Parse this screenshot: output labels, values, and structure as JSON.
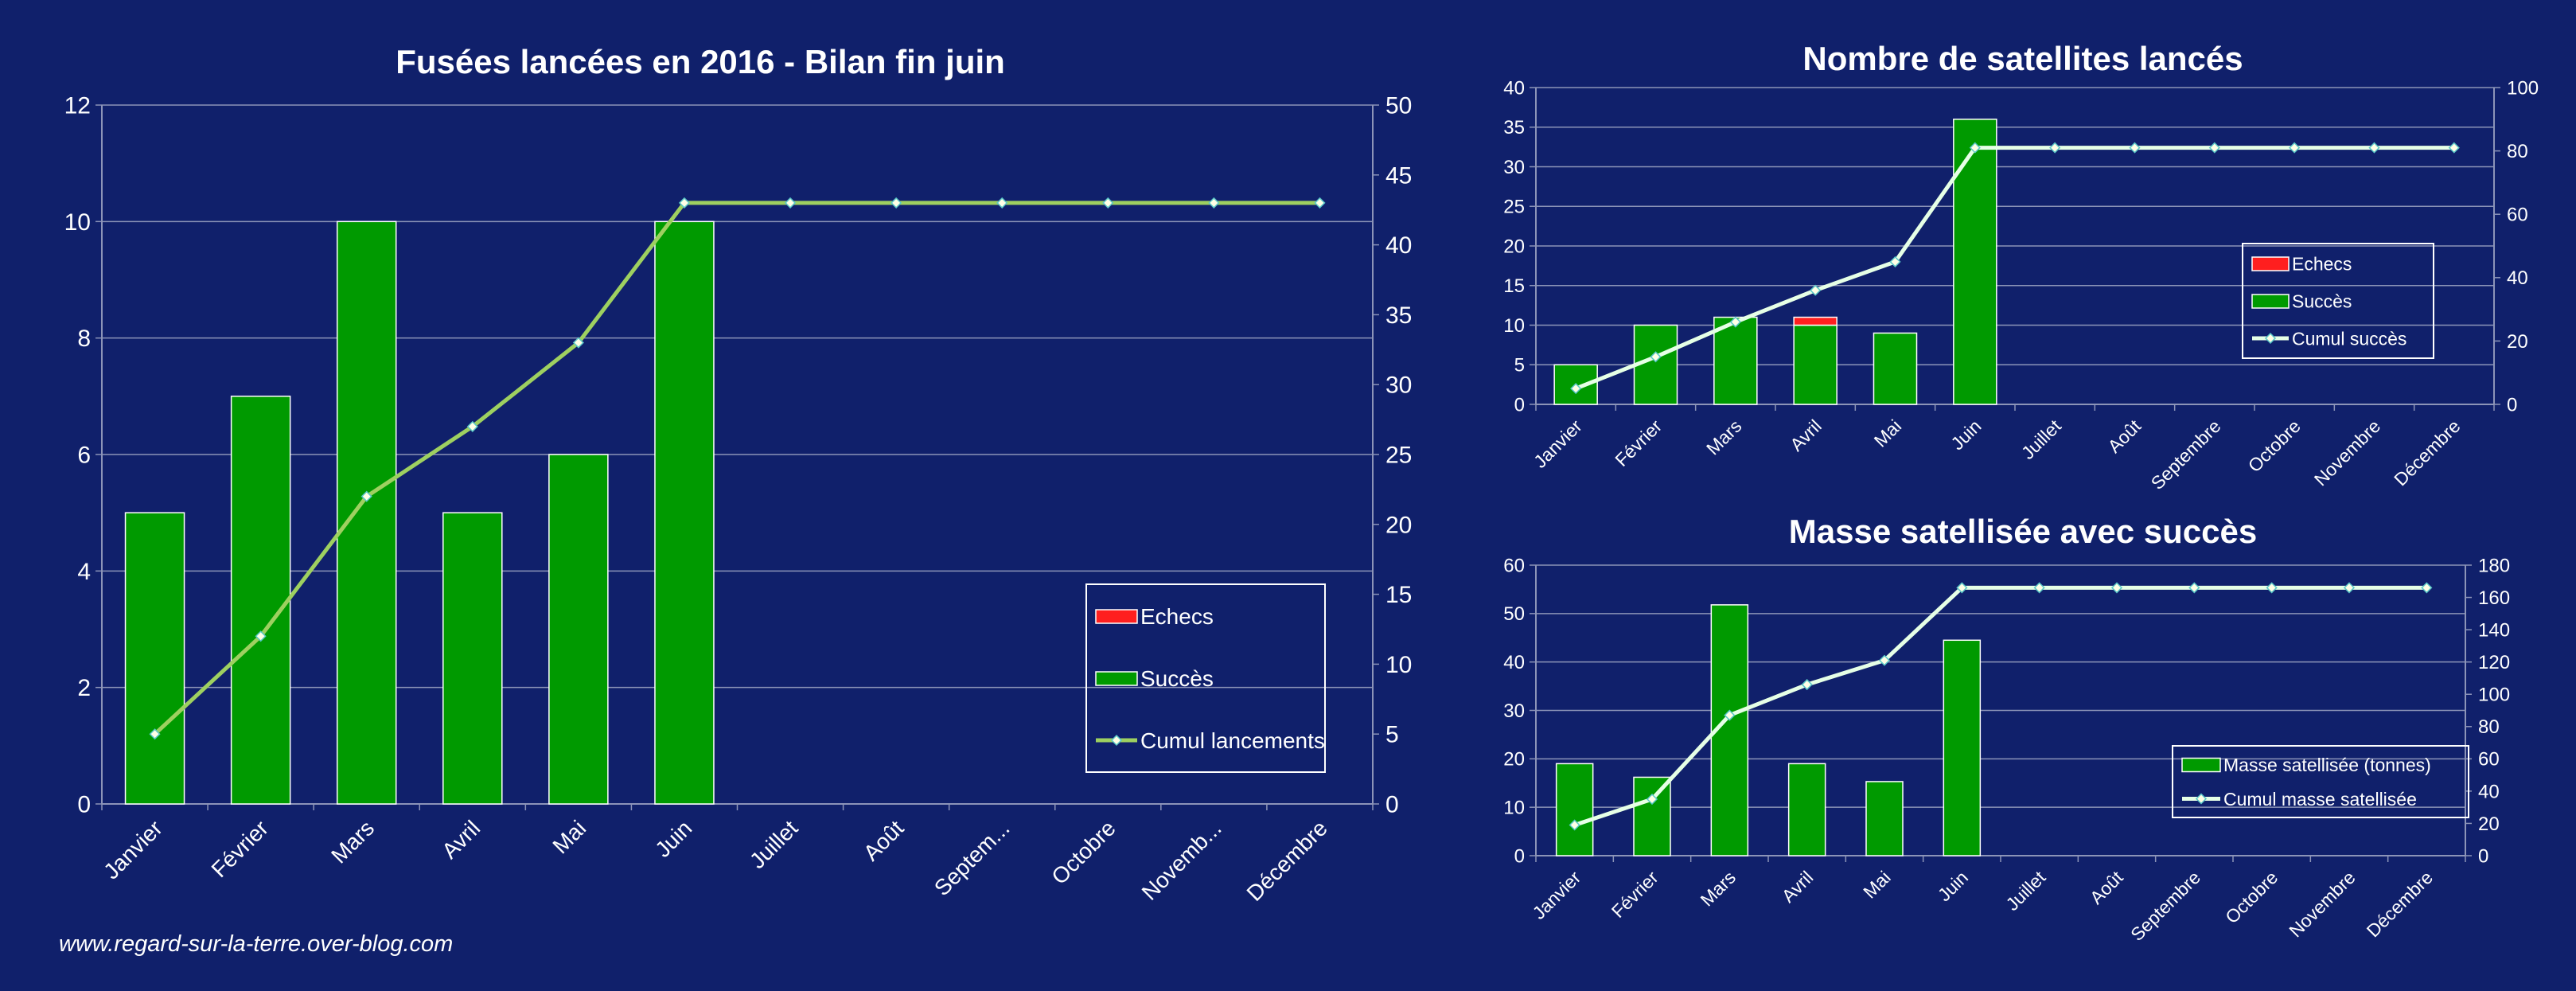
{
  "colors": {
    "background": "#10206b",
    "success": "#009a00",
    "failure": "#ff1f1f",
    "cumul_launches": "#9ed060",
    "cumul_line": "#e6ffe6",
    "grid": "#8c94b8",
    "text": "#ffffff"
  },
  "footer": {
    "text": "www.regard-sur-la-terre.over-blog.com"
  },
  "chart_data": [
    {
      "type": "bar",
      "title": "Fusées lancées en 2016 - Bilan fin juin",
      "categories": [
        "Janvier",
        "Février",
        "Mars",
        "Avril",
        "Mai",
        "Juin",
        "Juillet",
        "Août",
        "Septem...",
        "Octobre",
        "Novemb...",
        "Décembre"
      ],
      "ylim": [
        0,
        12
      ],
      "yticks": [
        0,
        2,
        4,
        6,
        8,
        10,
        12
      ],
      "y2lim": [
        0,
        50
      ],
      "y2ticks": [
        0,
        5,
        10,
        15,
        20,
        25,
        30,
        35,
        40,
        45,
        50
      ],
      "series": [
        {
          "name": "Echecs",
          "kind": "bar-stack",
          "axis": "left",
          "color": "#ff1f1f",
          "values": [
            0,
            0,
            0,
            0,
            0,
            0,
            null,
            null,
            null,
            null,
            null,
            null
          ]
        },
        {
          "name": "Succès",
          "kind": "bar-stack",
          "axis": "left",
          "color": "#009a00",
          "values": [
            5,
            7,
            10,
            5,
            6,
            10,
            null,
            null,
            null,
            null,
            null,
            null
          ]
        },
        {
          "name": "Cumul lancements",
          "kind": "line",
          "axis": "right",
          "color": "#9ed060",
          "values": [
            5,
            12,
            22,
            27,
            33,
            43,
            43,
            43,
            43,
            43,
            43,
            43
          ]
        }
      ],
      "legend_position": "bottom-right",
      "grid": true
    },
    {
      "type": "bar",
      "title": "Nombre de satellites lancés",
      "categories": [
        "Janvier",
        "Février",
        "Mars",
        "Avril",
        "Mai",
        "Juin",
        "Juillet",
        "Août",
        "Septembre",
        "Octobre",
        "Novembre",
        "Décembre"
      ],
      "ylim": [
        0,
        40
      ],
      "yticks": [
        0,
        5,
        10,
        15,
        20,
        25,
        30,
        35,
        40
      ],
      "y2lim": [
        0,
        100
      ],
      "y2ticks": [
        0,
        20,
        40,
        60,
        80,
        100
      ],
      "series": [
        {
          "name": "Echecs",
          "kind": "bar-stack",
          "axis": "left",
          "color": "#ff1f1f",
          "values": [
            0,
            0,
            0,
            1,
            0,
            0,
            null,
            null,
            null,
            null,
            null,
            null
          ]
        },
        {
          "name": "Succès",
          "kind": "bar-stack",
          "axis": "left",
          "color": "#009a00",
          "values": [
            5,
            10,
            11,
            10,
            9,
            36,
            null,
            null,
            null,
            null,
            null,
            null
          ]
        },
        {
          "name": "Cumul succès",
          "kind": "line",
          "axis": "right",
          "color": "#e6ffe6",
          "values": [
            5,
            15,
            26,
            36,
            45,
            81,
            81,
            81,
            81,
            81,
            81,
            81
          ]
        }
      ],
      "legend_position": "right",
      "grid": true
    },
    {
      "type": "bar",
      "title": "Masse satellisée avec succès",
      "categories": [
        "Janvier",
        "Février",
        "Mars",
        "Avril",
        "Mai",
        "Juin",
        "Juillet",
        "Août",
        "Septembre",
        "Octobre",
        "Novembre",
        "Décembre"
      ],
      "ylim": [
        0,
        60
      ],
      "yticks": [
        0,
        10,
        20,
        30,
        40,
        50,
        60
      ],
      "y2lim": [
        0,
        180
      ],
      "y2ticks": [
        0,
        20,
        40,
        60,
        80,
        100,
        120,
        140,
        160,
        180
      ],
      "series": [
        {
          "name": "Masse satellisée (tonnes)",
          "kind": "bar-stack",
          "axis": "left",
          "color": "#009a00",
          "values": [
            19,
            16.2,
            51.8,
            19,
            15.3,
            44.5,
            null,
            null,
            null,
            null,
            null,
            null
          ]
        },
        {
          "name": "Cumul masse satellisée",
          "kind": "line",
          "axis": "right",
          "color": "#e6ffe6",
          "values": [
            19,
            35,
            87,
            106,
            121,
            166,
            166,
            166,
            166,
            166,
            166,
            166
          ]
        }
      ],
      "legend_position": "right",
      "grid": true
    }
  ]
}
